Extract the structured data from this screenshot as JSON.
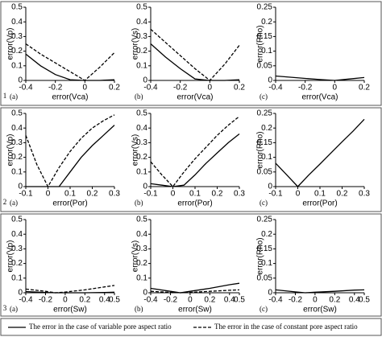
{
  "rows": [
    "1",
    "2",
    "3"
  ],
  "legend": [
    {
      "label": "The error in the case of variable pore aspect ratio",
      "dash": false,
      "color": "#000000"
    },
    {
      "label": "The error in the case of constant pore aspect ratio",
      "dash": true,
      "color": "#000000"
    }
  ],
  "chart_data": [
    {
      "type": "line",
      "panel_label": "(a)",
      "x_label": "error(Vca)",
      "y_label": "error(Vp)",
      "x": [
        -0.4,
        -0.3,
        -0.2,
        -0.1,
        0,
        0.1,
        0.2
      ],
      "xlim": [
        -0.4,
        0.2
      ],
      "xticks": [
        -0.4,
        -0.2,
        0,
        0.2
      ],
      "ylim": [
        0,
        0.5
      ],
      "yticks": [
        0,
        0.1,
        0.2,
        0.3,
        0.4,
        0.5
      ],
      "series": [
        {
          "dash": false,
          "color": "#000000",
          "values": [
            0.18,
            0.1,
            0.04,
            0.005,
            0,
            0,
            0.005
          ]
        },
        {
          "dash": true,
          "color": "#000000",
          "values": [
            0.25,
            0.18,
            0.12,
            0.06,
            0,
            0.09,
            0.19
          ]
        }
      ]
    },
    {
      "type": "line",
      "panel_label": "(b)",
      "x_label": "error(Vca)",
      "y_label": "error(Vs)",
      "x": [
        -0.4,
        -0.3,
        -0.2,
        -0.1,
        0,
        0.1,
        0.2
      ],
      "xlim": [
        -0.4,
        0.2
      ],
      "xticks": [
        -0.4,
        -0.2,
        0,
        0.2
      ],
      "ylim": [
        0,
        0.5
      ],
      "yticks": [
        0,
        0.1,
        0.2,
        0.3,
        0.4,
        0.5
      ],
      "series": [
        {
          "dash": false,
          "color": "#000000",
          "values": [
            0.25,
            0.16,
            0.08,
            0.01,
            0,
            0,
            0.005
          ]
        },
        {
          "dash": true,
          "color": "#000000",
          "values": [
            0.35,
            0.26,
            0.17,
            0.08,
            0,
            0.11,
            0.24
          ]
        }
      ]
    },
    {
      "type": "line",
      "panel_label": "(c)",
      "x_label": "error(Vca)",
      "y_label": "error(Rho)",
      "x": [
        -0.4,
        -0.3,
        -0.2,
        -0.1,
        0,
        0.1,
        0.2
      ],
      "xlim": [
        -0.4,
        0.2
      ],
      "xticks": [
        -0.4,
        -0.2,
        0,
        0.2
      ],
      "ylim": [
        0,
        0.25
      ],
      "yticks": [
        0,
        0.05,
        0.1,
        0.15,
        0.2,
        0.25
      ],
      "series": [
        {
          "dash": false,
          "color": "#000000",
          "values": [
            0.015,
            0.011,
            0.007,
            0.003,
            0,
            0.005,
            0.01
          ]
        }
      ]
    },
    {
      "type": "line",
      "panel_label": "(a)",
      "x_label": "error(Por)",
      "y_label": "error(Vp)",
      "x": [
        -0.1,
        -0.05,
        0,
        0.05,
        0.1,
        0.15,
        0.2,
        0.25,
        0.3
      ],
      "xlim": [
        -0.1,
        0.3
      ],
      "xticks": [
        -0.1,
        0,
        0.1,
        0.2,
        0.3
      ],
      "ylim": [
        0,
        0.5
      ],
      "yticks": [
        0,
        0.1,
        0.2,
        0.3,
        0.4,
        0.5
      ],
      "series": [
        {
          "dash": false,
          "color": "#000000",
          "values": [
            0,
            0,
            0,
            0,
            0.1,
            0.2,
            0.28,
            0.35,
            0.42
          ]
        },
        {
          "dash": true,
          "color": "#000000",
          "values": [
            0.35,
            0.15,
            0,
            0.13,
            0.24,
            0.33,
            0.4,
            0.45,
            0.49
          ]
        }
      ]
    },
    {
      "type": "line",
      "panel_label": "(b)",
      "x_label": "error(Por)",
      "y_label": "error(Vs)",
      "x": [
        -0.1,
        -0.05,
        0,
        0.05,
        0.1,
        0.15,
        0.2,
        0.25,
        0.3
      ],
      "xlim": [
        -0.1,
        0.3
      ],
      "xticks": [
        -0.1,
        0,
        0.1,
        0.2,
        0.3
      ],
      "ylim": [
        0,
        0.5
      ],
      "yticks": [
        0,
        0.1,
        0.2,
        0.3,
        0.4,
        0.5
      ],
      "series": [
        {
          "dash": false,
          "color": "#000000",
          "values": [
            0.02,
            0.01,
            0,
            0.01,
            0.08,
            0.16,
            0.23,
            0.3,
            0.36
          ]
        },
        {
          "dash": true,
          "color": "#000000",
          "values": [
            0.17,
            0.08,
            0,
            0.1,
            0.19,
            0.27,
            0.35,
            0.42,
            0.48
          ]
        }
      ]
    },
    {
      "type": "line",
      "panel_label": "(c)",
      "x_label": "error(Por)",
      "y_label": "error(Rho)",
      "x": [
        -0.1,
        -0.05,
        0,
        0.05,
        0.1,
        0.15,
        0.2,
        0.25,
        0.3
      ],
      "xlim": [
        -0.1,
        0.3
      ],
      "xticks": [
        -0.1,
        0,
        0.1,
        0.2,
        0.3
      ],
      "ylim": [
        0,
        0.25
      ],
      "yticks": [
        0,
        0.05,
        0.1,
        0.15,
        0.2,
        0.25
      ],
      "series": [
        {
          "dash": false,
          "color": "#000000",
          "values": [
            0.08,
            0.04,
            0,
            0.04,
            0.077,
            0.115,
            0.153,
            0.19,
            0.23
          ]
        }
      ]
    },
    {
      "type": "line",
      "panel_label": "(a)",
      "x_label": "error(Sw)",
      "y_label": "error(Vp)",
      "x": [
        -0.4,
        -0.2,
        -0.1,
        0,
        0.2,
        0.4,
        0.5
      ],
      "xlim": [
        -0.4,
        0.5
      ],
      "xticks": [
        -0.4,
        -0.2,
        0,
        0.2,
        0.4,
        0.5
      ],
      "ylim": [
        0,
        0.5
      ],
      "yticks": [
        0,
        0.1,
        0.2,
        0.3,
        0.4,
        0.5
      ],
      "series": [
        {
          "dash": false,
          "color": "#000000",
          "values": [
            0.008,
            0.002,
            0,
            0,
            0,
            0.002,
            0.004
          ]
        },
        {
          "dash": true,
          "color": "#000000",
          "values": [
            0.025,
            0.01,
            0,
            0.005,
            0.02,
            0.04,
            0.05
          ]
        }
      ]
    },
    {
      "type": "line",
      "panel_label": "(b)",
      "x_label": "error(Sw)",
      "y_label": "error(Vs)",
      "x": [
        -0.4,
        -0.2,
        -0.1,
        0,
        0.2,
        0.4,
        0.5
      ],
      "xlim": [
        -0.4,
        0.5
      ],
      "xticks": [
        -0.4,
        -0.2,
        0,
        0.2,
        0.4,
        0.5
      ],
      "ylim": [
        0,
        0.5
      ],
      "yticks": [
        0,
        0.1,
        0.2,
        0.3,
        0.4,
        0.5
      ],
      "series": [
        {
          "dash": false,
          "color": "#000000",
          "values": [
            0.03,
            0.01,
            0,
            0.01,
            0.03,
            0.055,
            0.065
          ]
        },
        {
          "dash": true,
          "color": "#000000",
          "values": [
            0.01,
            0.003,
            0,
            0.003,
            0.01,
            0.017,
            0.02
          ]
        }
      ]
    },
    {
      "type": "line",
      "panel_label": "(c)",
      "x_label": "error(Sw)",
      "y_label": "error(Rho)",
      "x": [
        -0.4,
        -0.2,
        -0.1,
        0,
        0.2,
        0.4,
        0.5
      ],
      "xlim": [
        -0.4,
        0.5
      ],
      "xticks": [
        -0.4,
        -0.2,
        0,
        0.2,
        0.4,
        0.5
      ],
      "ylim": [
        0,
        0.25
      ],
      "yticks": [
        0,
        0.05,
        0.1,
        0.15,
        0.2,
        0.25
      ],
      "series": [
        {
          "dash": false,
          "color": "#000000",
          "values": [
            0.01,
            0.003,
            0,
            0.002,
            0.005,
            0.009,
            0.01
          ]
        }
      ]
    }
  ]
}
